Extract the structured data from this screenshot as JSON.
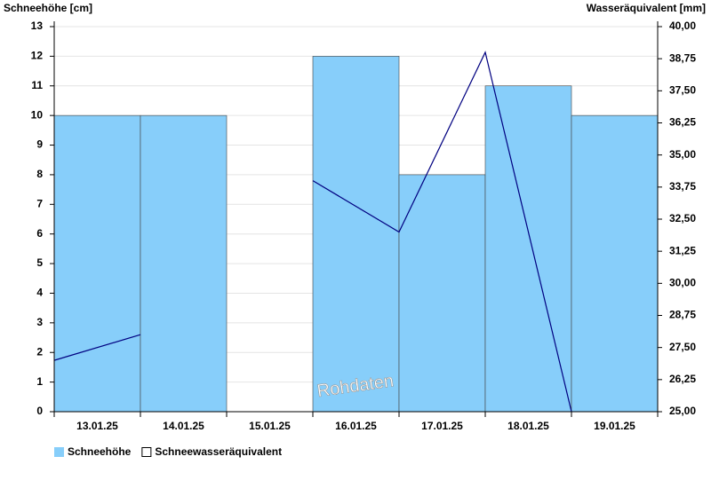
{
  "chart_data": {
    "type": "bar_line",
    "y_label": "Schneehöhe [cm]",
    "y2_label": "Wasseräquivalent [mm]",
    "annotation": "Rohdaten",
    "categories": [
      "13.01.25",
      "14.01.25",
      "15.01.25",
      "16.01.25",
      "17.01.25",
      "18.01.25",
      "19.01.25"
    ],
    "series": [
      {
        "name": "Schneehöhe",
        "type": "bar",
        "color": "#87cefa",
        "values": [
          10,
          10,
          null,
          12,
          8,
          11,
          10
        ]
      },
      {
        "name": "Schneewasseräquivalent",
        "type": "line",
        "axis": "y2",
        "color": "#000080",
        "values": [
          27.0,
          28.0,
          null,
          34.0,
          32.0,
          39.0,
          25.0
        ]
      }
    ],
    "ylim": [
      0,
      13
    ],
    "yticks": [
      0,
      1,
      2,
      3,
      4,
      5,
      6,
      7,
      8,
      9,
      10,
      11,
      12,
      13
    ],
    "y2lim": [
      25,
      40
    ],
    "y2ticks": [
      {
        "value": 25,
        "label": "25,00"
      },
      {
        "value": 26.25,
        "label": "26,25"
      },
      {
        "value": 27.5,
        "label": "27,50"
      },
      {
        "value": 28.75,
        "label": "28,75"
      },
      {
        "value": 30,
        "label": "30,00"
      },
      {
        "value": 31.25,
        "label": "31,25"
      },
      {
        "value": 32.5,
        "label": "32,50"
      },
      {
        "value": 33.75,
        "label": "33,75"
      },
      {
        "value": 35,
        "label": "35,00"
      },
      {
        "value": 36.25,
        "label": "36,25"
      },
      {
        "value": 37.5,
        "label": "37,50"
      },
      {
        "value": 38.75,
        "label": "38,75"
      },
      {
        "value": 40,
        "label": "40,00"
      }
    ],
    "grid": true
  }
}
